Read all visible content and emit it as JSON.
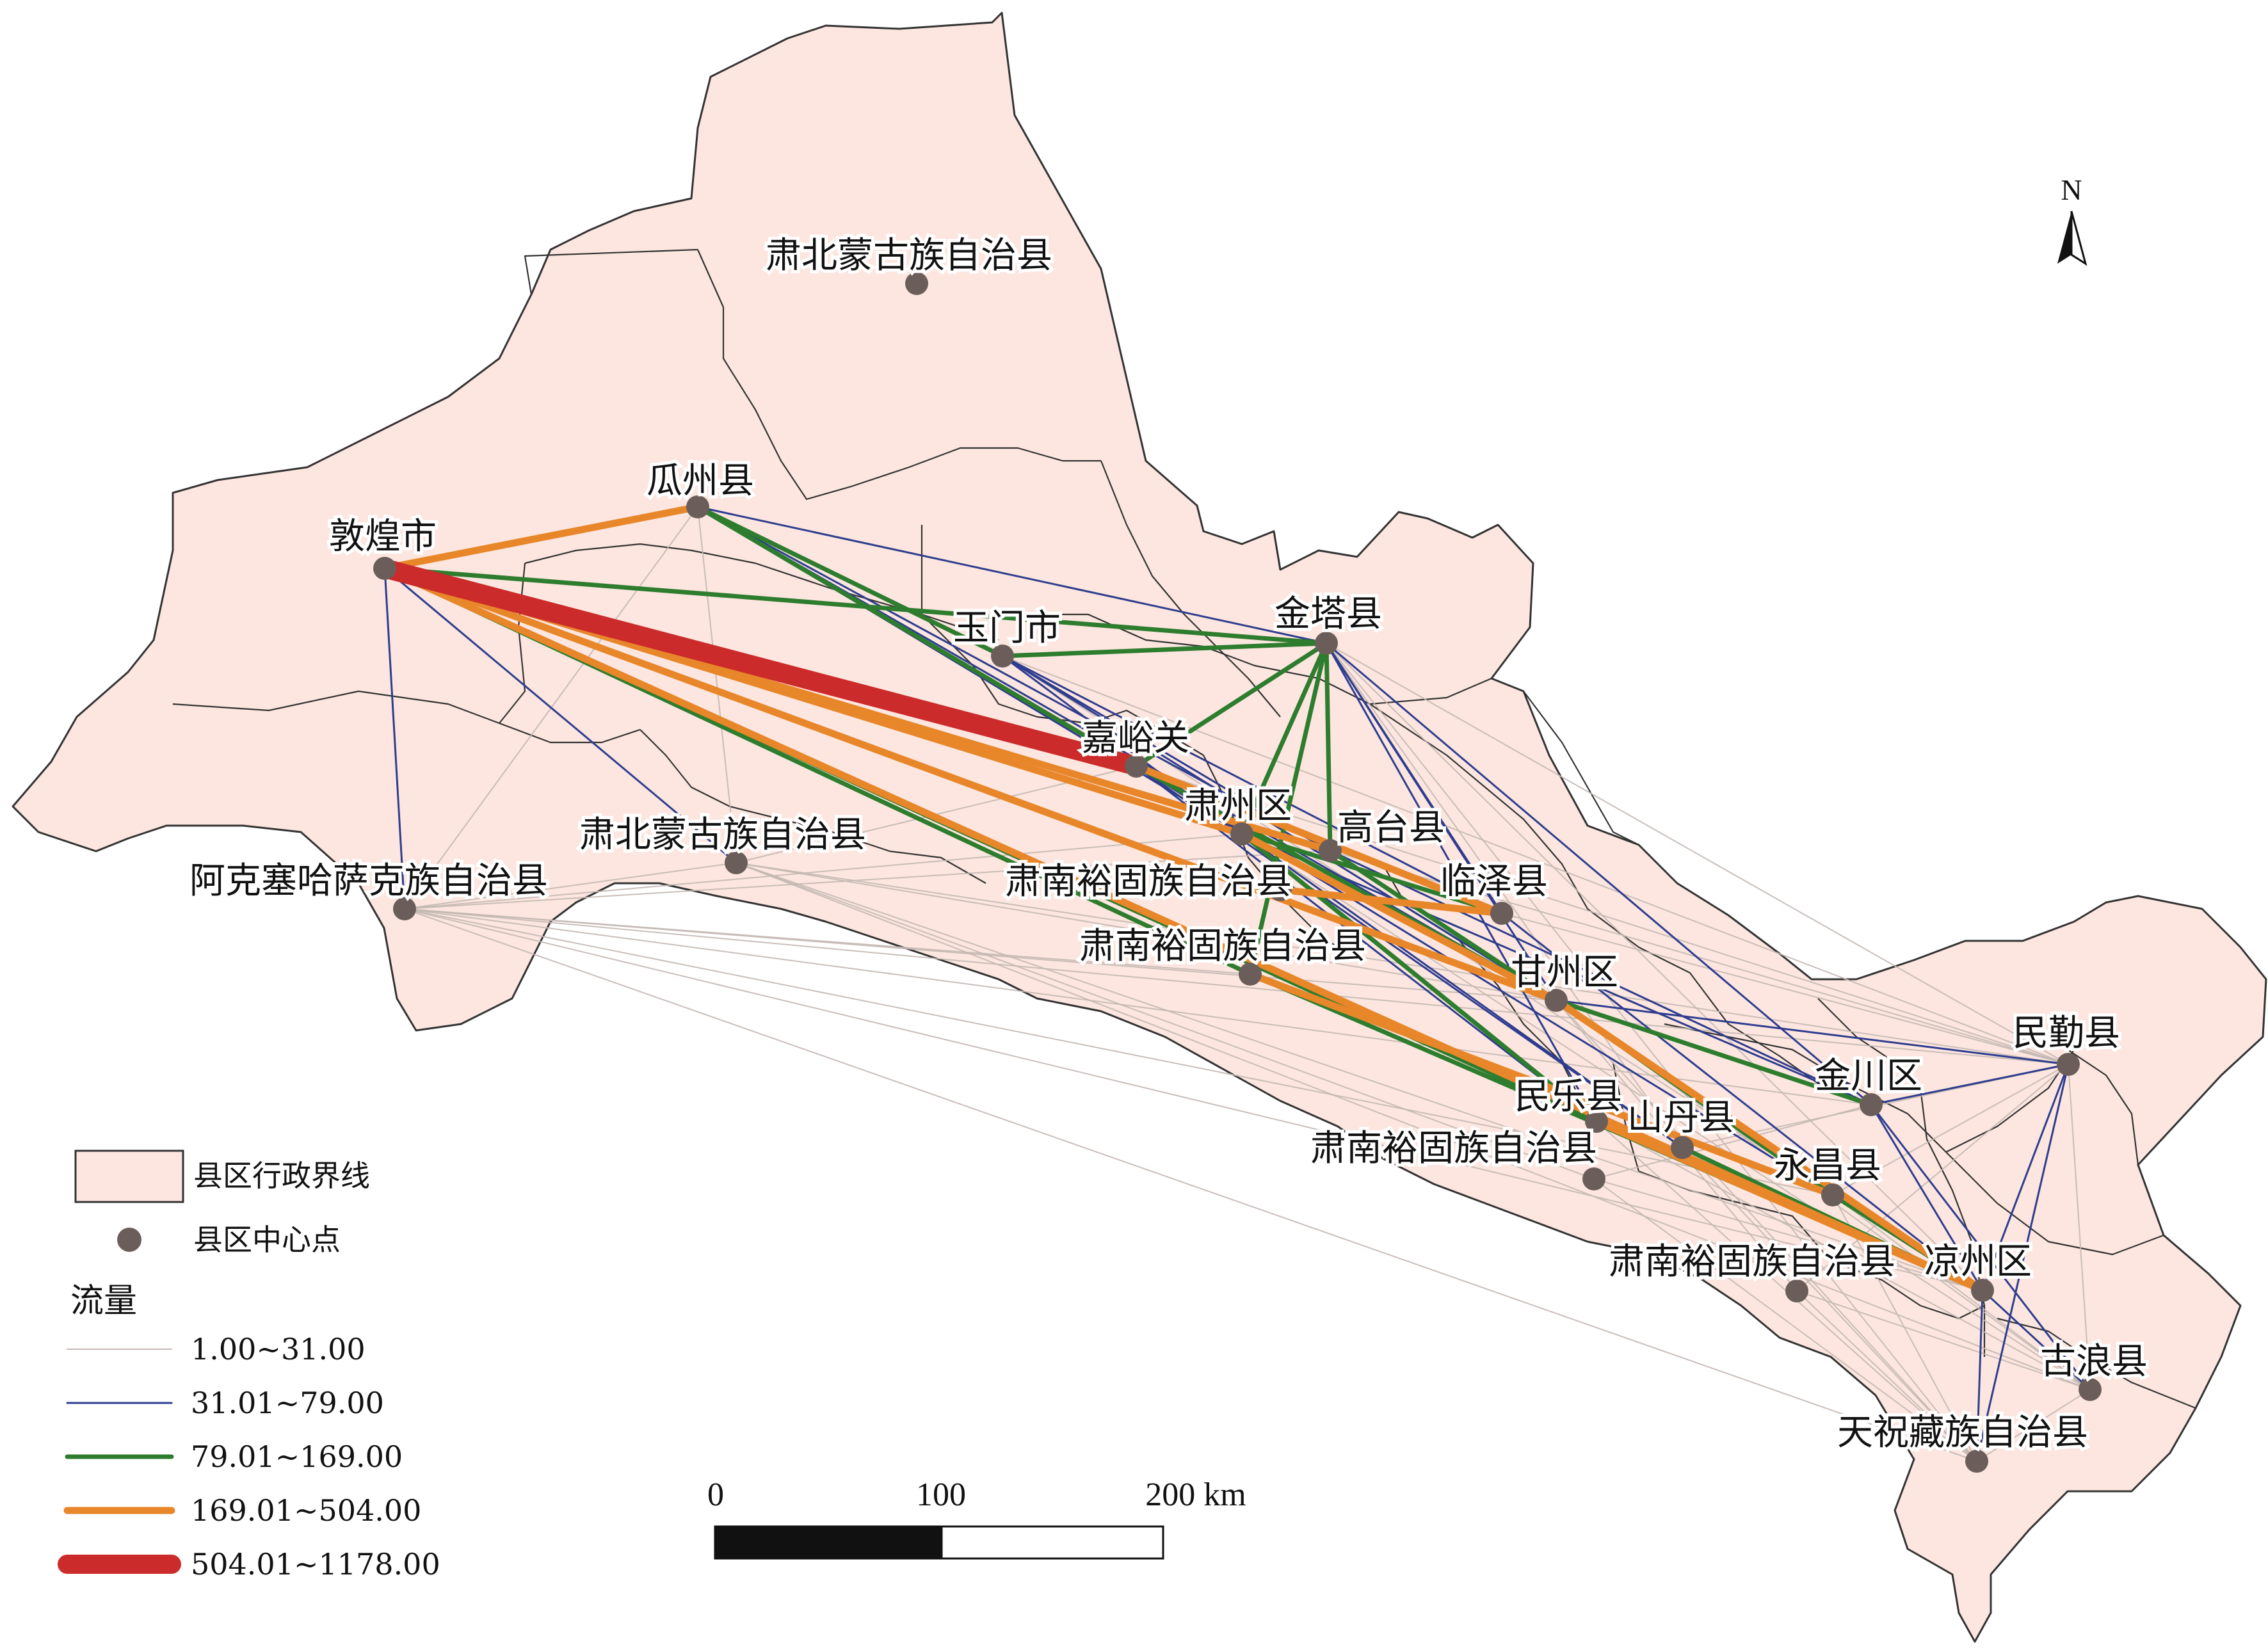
{
  "counties": [
    {
      "id": "subei_n",
      "name": "肃北蒙古族自治县"
    },
    {
      "id": "guazhou",
      "name": "瓜州县"
    },
    {
      "id": "dunhuang",
      "name": "敦煌市"
    },
    {
      "id": "yumen",
      "name": "玉门市"
    },
    {
      "id": "jinta",
      "name": "金塔县"
    },
    {
      "id": "jiayuguan",
      "name": "嘉峪关"
    },
    {
      "id": "suzhou",
      "name": "肃州区"
    },
    {
      "id": "gaotai",
      "name": "高台县"
    },
    {
      "id": "subei_s",
      "name": "肃北蒙古族自治县"
    },
    {
      "id": "akesai",
      "name": "阿克塞哈萨克族自治县"
    },
    {
      "id": "linze",
      "name": "临泽县"
    },
    {
      "id": "sunan1",
      "name": "肃南裕固族自治县"
    },
    {
      "id": "sunan2",
      "name": "肃南裕固族自治县"
    },
    {
      "id": "ganzhou",
      "name": "甘州区"
    },
    {
      "id": "minle",
      "name": "民乐县"
    },
    {
      "id": "shandan",
      "name": "山丹县"
    },
    {
      "id": "sunan3",
      "name": "肃南裕固族自治县"
    },
    {
      "id": "jinchuan",
      "name": "金川区"
    },
    {
      "id": "yongchang",
      "name": "永昌县"
    },
    {
      "id": "minqin",
      "name": "民勤县"
    },
    {
      "id": "sunan4",
      "name": "肃南裕固族自治县"
    },
    {
      "id": "liangzhou",
      "name": "凉州区"
    },
    {
      "id": "gulang",
      "name": "古浪县"
    },
    {
      "id": "tianzhu",
      "name": "天祝藏族自治县"
    }
  ],
  "flow_classes": [
    {
      "id": "c1",
      "range": "1.00~31.00",
      "color": "#c4b8b3",
      "width": 2
    },
    {
      "id": "c2",
      "range": "31.01~79.00",
      "color": "#2e3d8f",
      "width": 3
    },
    {
      "id": "c3",
      "range": "79.01~169.00",
      "color": "#2e7d2f",
      "width": 7
    },
    {
      "id": "c4",
      "range": "169.01~504.00",
      "color": "#e8862a",
      "width": 11
    },
    {
      "id": "c5",
      "range": "504.01~1178.00",
      "color": "#cc2b2b",
      "width": 30
    }
  ],
  "flows": [
    {
      "from": "dunhuang",
      "to": "jiayuguan",
      "class": "c5"
    },
    {
      "from": "dunhuang",
      "to": "guazhou",
      "class": "c4"
    },
    {
      "from": "dunhuang",
      "to": "suzhou",
      "class": "c4"
    },
    {
      "from": "dunhuang",
      "to": "gaotai",
      "class": "c4"
    },
    {
      "from": "dunhuang",
      "to": "ganzhou",
      "class": "c4"
    },
    {
      "from": "dunhuang",
      "to": "liangzhou",
      "class": "c4"
    },
    {
      "from": "jiayuguan",
      "to": "linze",
      "class": "c4"
    },
    {
      "from": "suzhou",
      "to": "ganzhou",
      "class": "c4"
    },
    {
      "from": "sunan2",
      "to": "yongchang",
      "class": "c4"
    },
    {
      "from": "ganzhou",
      "to": "liangzhou",
      "class": "c4"
    },
    {
      "from": "sunan1",
      "to": "linze",
      "class": "c4"
    },
    {
      "from": "minle",
      "to": "liangzhou",
      "class": "c4"
    },
    {
      "from": "dunhuang",
      "to": "jinta",
      "class": "c3"
    },
    {
      "from": "yumen",
      "to": "jinta",
      "class": "c3"
    },
    {
      "from": "jinta",
      "to": "jiayuguan",
      "class": "c3"
    },
    {
      "from": "jinta",
      "to": "suzhou",
      "class": "c3"
    },
    {
      "from": "jinta",
      "to": "gaotai",
      "class": "c3"
    },
    {
      "from": "jinta",
      "to": "sunan2",
      "class": "c3"
    },
    {
      "from": "guazhou",
      "to": "jiayuguan",
      "class": "c3"
    },
    {
      "from": "guazhou",
      "to": "yumen",
      "class": "c3"
    },
    {
      "from": "dunhuang",
      "to": "linze",
      "class": "c3"
    },
    {
      "from": "dunhuang",
      "to": "minle",
      "class": "c3"
    },
    {
      "from": "dunhuang",
      "to": "sunan2",
      "class": "c3"
    },
    {
      "from": "jiayuguan",
      "to": "ganzhou",
      "class": "c3"
    },
    {
      "from": "suzhou",
      "to": "minle",
      "class": "c3"
    },
    {
      "from": "gaotai",
      "to": "ganzhou",
      "class": "c3"
    },
    {
      "from": "ganzhou",
      "to": "jinchuan",
      "class": "c3"
    },
    {
      "from": "ganzhou",
      "to": "yongchang",
      "class": "c3"
    },
    {
      "from": "sunan2",
      "to": "liangzhou",
      "class": "c3"
    },
    {
      "from": "shandan",
      "to": "liangzhou",
      "class": "c3"
    },
    {
      "from": "yongchang",
      "to": "liangzhou",
      "class": "c3"
    },
    {
      "from": "dunhuang",
      "to": "akesai",
      "class": "c2"
    },
    {
      "from": "dunhuang",
      "to": "subei_s",
      "class": "c2"
    },
    {
      "from": "guazhou",
      "to": "jinta",
      "class": "c2"
    },
    {
      "from": "guazhou",
      "to": "suzhou",
      "class": "c2"
    },
    {
      "from": "guazhou",
      "to": "gaotai",
      "class": "c2"
    },
    {
      "from": "guazhou",
      "to": "ganzhou",
      "class": "c2"
    },
    {
      "from": "yumen",
      "to": "suzhou",
      "class": "c2"
    },
    {
      "from": "yumen",
      "to": "gaotai",
      "class": "c2"
    },
    {
      "from": "yumen",
      "to": "linze",
      "class": "c2"
    },
    {
      "from": "yumen",
      "to": "ganzhou",
      "class": "c2"
    },
    {
      "from": "jinta",
      "to": "linze",
      "class": "c2"
    },
    {
      "from": "jinta",
      "to": "ganzhou",
      "class": "c2"
    },
    {
      "from": "jinta",
      "to": "jinchuan",
      "class": "c2"
    },
    {
      "from": "jinta",
      "to": "minle",
      "class": "c2"
    },
    {
      "from": "jiayuguan",
      "to": "minle",
      "class": "c2"
    },
    {
      "from": "jiayuguan",
      "to": "shandan",
      "class": "c2"
    },
    {
      "from": "jiayuguan",
      "to": "yongchang",
      "class": "c2"
    },
    {
      "from": "suzhou",
      "to": "jinchuan",
      "class": "c2"
    },
    {
      "from": "suzhou",
      "to": "shandan",
      "class": "c2"
    },
    {
      "from": "gaotai",
      "to": "jinchuan",
      "class": "c2"
    },
    {
      "from": "linze",
      "to": "liangzhou",
      "class": "c2"
    },
    {
      "from": "minqin",
      "to": "liangzhou",
      "class": "c2"
    },
    {
      "from": "minqin",
      "to": "jinchuan",
      "class": "c2"
    },
    {
      "from": "minqin",
      "to": "tianzhu",
      "class": "c2"
    },
    {
      "from": "minqin",
      "to": "ganzhou",
      "class": "c2"
    },
    {
      "from": "liangzhou",
      "to": "gulang",
      "class": "c2"
    },
    {
      "from": "liangzhou",
      "to": "tianzhu",
      "class": "c2"
    },
    {
      "from": "jinchuan",
      "to": "liangzhou",
      "class": "c2"
    },
    {
      "from": "jinchuan",
      "to": "gulang",
      "class": "c2"
    },
    {
      "from": "akesai",
      "to": "suzhou",
      "class": "c1"
    },
    {
      "from": "akesai",
      "to": "ganzhou",
      "class": "c1"
    },
    {
      "from": "akesai",
      "to": "liangzhou",
      "class": "c1"
    },
    {
      "from": "akesai",
      "to": "minqin",
      "class": "c1"
    },
    {
      "from": "akesai",
      "to": "sunan2",
      "class": "c1"
    },
    {
      "from": "akesai",
      "to": "gaotai",
      "class": "c1"
    },
    {
      "from": "akesai",
      "to": "subei_s",
      "class": "c1"
    },
    {
      "from": "akesai",
      "to": "yongchang",
      "class": "c1"
    },
    {
      "from": "akesai",
      "to": "jinchuan",
      "class": "c1"
    },
    {
      "from": "akesai",
      "to": "tianzhu",
      "class": "c1"
    },
    {
      "from": "subei_s",
      "to": "guazhou",
      "class": "c1"
    },
    {
      "from": "subei_s",
      "to": "jiayuguan",
      "class": "c1"
    },
    {
      "from": "subei_s",
      "to": "ganzhou",
      "class": "c1"
    },
    {
      "from": "subei_s",
      "to": "liangzhou",
      "class": "c1"
    },
    {
      "from": "subei_s",
      "to": "minqin",
      "class": "c1"
    },
    {
      "from": "subei_s",
      "to": "gulang",
      "class": "c1"
    },
    {
      "from": "subei_s",
      "to": "sunan3",
      "class": "c1"
    },
    {
      "from": "guazhou",
      "to": "akesai",
      "class": "c1"
    },
    {
      "from": "jinta",
      "to": "minqin",
      "class": "c1"
    },
    {
      "from": "jinta",
      "to": "liangzhou",
      "class": "c1"
    },
    {
      "from": "jinta",
      "to": "shandan",
      "class": "c1"
    },
    {
      "from": "jinta",
      "to": "tianzhu",
      "class": "c1"
    },
    {
      "from": "yumen",
      "to": "minqin",
      "class": "c1"
    },
    {
      "from": "yumen",
      "to": "liangzhou",
      "class": "c1"
    },
    {
      "from": "jiayuguan",
      "to": "minqin",
      "class": "c1"
    },
    {
      "from": "jiayuguan",
      "to": "gulang",
      "class": "c1"
    },
    {
      "from": "gaotai",
      "to": "minqin",
      "class": "c1"
    },
    {
      "from": "linze",
      "to": "minqin",
      "class": "c1"
    },
    {
      "from": "ganzhou",
      "to": "gulang",
      "class": "c1"
    },
    {
      "from": "ganzhou",
      "to": "tianzhu",
      "class": "c1"
    },
    {
      "from": "sunan3",
      "to": "liangzhou",
      "class": "c1"
    },
    {
      "from": "sunan3",
      "to": "tianzhu",
      "class": "c1"
    },
    {
      "from": "sunan3",
      "to": "jinchuan",
      "class": "c1"
    },
    {
      "from": "sunan4",
      "to": "tianzhu",
      "class": "c1"
    },
    {
      "from": "sunan4",
      "to": "gulang",
      "class": "c1"
    },
    {
      "from": "sunan4",
      "to": "ganzhou",
      "class": "c1"
    },
    {
      "from": "sunan4",
      "to": "minqin",
      "class": "c1"
    },
    {
      "from": "minle",
      "to": "tianzhu",
      "class": "c1"
    },
    {
      "from": "minle",
      "to": "gulang",
      "class": "c1"
    },
    {
      "from": "shandan",
      "to": "tianzhu",
      "class": "c1"
    },
    {
      "from": "shandan",
      "to": "minqin",
      "class": "c1"
    },
    {
      "from": "yongchang",
      "to": "tianzhu",
      "class": "c1"
    },
    {
      "from": "yongchang",
      "to": "gulang",
      "class": "c1"
    },
    {
      "from": "yongchang",
      "to": "minqin",
      "class": "c1"
    },
    {
      "from": "gulang",
      "to": "tianzhu",
      "class": "c1"
    },
    {
      "from": "minqin",
      "to": "gulang",
      "class": "c1"
    }
  ],
  "legend": {
    "boundary_label": "县区行政界线",
    "center_label": "县区中心点",
    "flow_title": "流量"
  },
  "scale": {
    "labels": [
      "0",
      "100",
      "200 km"
    ]
  },
  "north": {
    "label": "N"
  },
  "colors": {
    "land": "#fce6df",
    "border": "#333333",
    "point": "#6b5e5a"
  }
}
